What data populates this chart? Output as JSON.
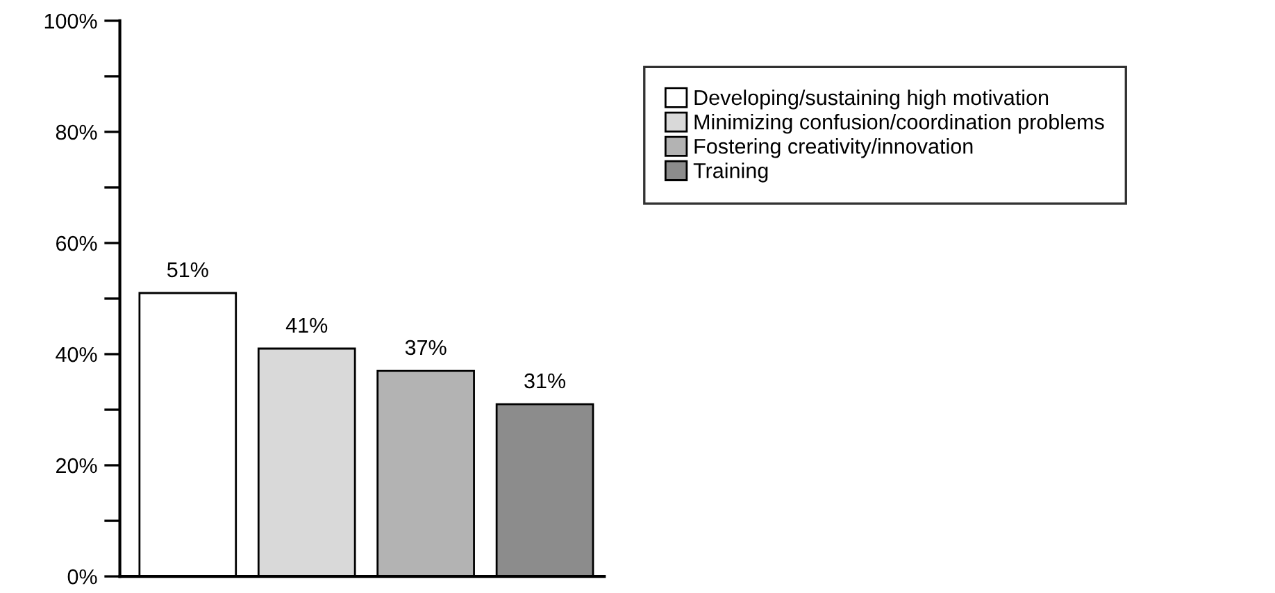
{
  "chart_data": {
    "type": "bar",
    "categories": [
      null,
      null,
      null,
      null
    ],
    "series": [
      {
        "name": "Developing/sustaining high motivation",
        "color": "#ffffff",
        "values": [
          51,
          null,
          null,
          null
        ],
        "value_labels": [
          "51%",
          null,
          null,
          null
        ]
      },
      {
        "name": "Minimizing confusion/coordination problems",
        "color": "#d9d9d9",
        "values": [
          null,
          41,
          null,
          null
        ],
        "value_labels": [
          null,
          "41%",
          null,
          null
        ]
      },
      {
        "name": "Fostering creativity/innovation",
        "color": "#b3b3b3",
        "values": [
          null,
          null,
          37,
          null
        ],
        "value_labels": [
          null,
          null,
          "37%",
          null
        ]
      },
      {
        "name": "Training",
        "color": "#8c8c8c",
        "values": [
          null,
          null,
          null,
          31
        ],
        "value_labels": [
          null,
          null,
          null,
          "31%"
        ]
      }
    ],
    "ylim": [
      0,
      100
    ],
    "yticks": [
      {
        "value": 0,
        "label": "0%"
      },
      {
        "value": 10,
        "label": null
      },
      {
        "value": 20,
        "label": "20%"
      },
      {
        "value": 30,
        "label": null
      },
      {
        "value": 40,
        "label": "40%"
      },
      {
        "value": 50,
        "label": null
      },
      {
        "value": 60,
        "label": "60%"
      },
      {
        "value": 70,
        "label": null
      },
      {
        "value": 80,
        "label": "80%"
      },
      {
        "value": 90,
        "label": null
      },
      {
        "value": 100,
        "label": "100%"
      }
    ],
    "legend": "right",
    "grid": false,
    "tick_labels": "y"
  }
}
